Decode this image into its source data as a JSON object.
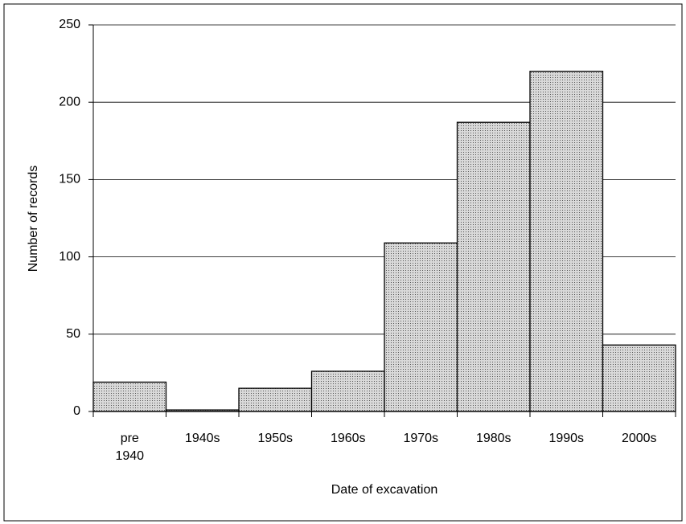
{
  "chart_data": {
    "type": "bar",
    "categories": [
      "pre 1940",
      "1940s",
      "1950s",
      "1960s",
      "1970s",
      "1980s",
      "1990s",
      "2000s"
    ],
    "values": [
      19,
      1,
      15,
      26,
      109,
      187,
      220,
      43
    ],
    "color": "#d9d9d9",
    "ylim": [
      0,
      250
    ],
    "yticks": [
      0,
      50,
      100,
      150,
      200,
      250
    ],
    "grid": true,
    "x_label": "Date of excavation",
    "y_label": "Number of records"
  }
}
